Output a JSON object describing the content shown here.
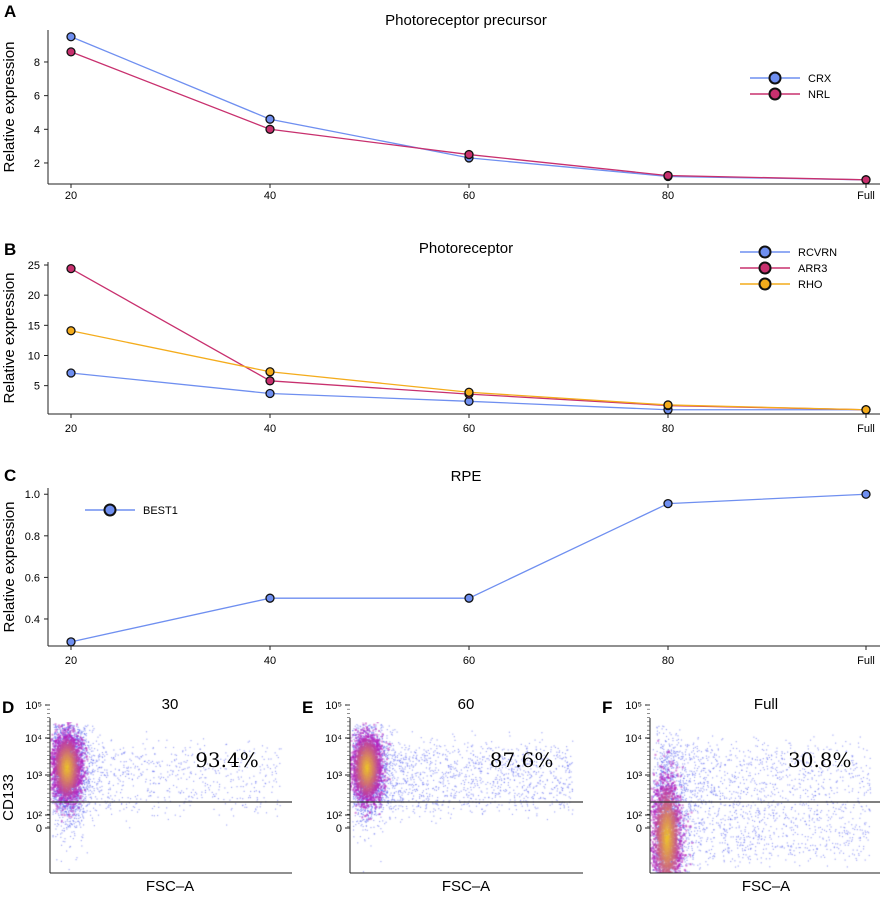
{
  "colors": {
    "blue": "#6f8ff0",
    "magenta": "#c8306e",
    "orange": "#f4ac1c"
  },
  "chart_data": [
    {
      "panel": "A",
      "type": "line",
      "title": "Photoreceptor precursor",
      "xlabel": "",
      "ylabel": "Relative expression",
      "categories": [
        "20",
        "40",
        "60",
        "80",
        "Full"
      ],
      "yticks": [
        2,
        4,
        6,
        8
      ],
      "ylim": [
        0.75,
        9.9
      ],
      "legend": "top-right",
      "series": [
        {
          "name": "CRX",
          "color": "blue",
          "values": [
            9.5,
            4.6,
            2.3,
            1.2,
            1.0
          ]
        },
        {
          "name": "NRL",
          "color": "magenta",
          "values": [
            8.6,
            4.0,
            2.5,
            1.25,
            1.0
          ]
        }
      ]
    },
    {
      "panel": "B",
      "type": "line",
      "title": "Photoreceptor",
      "xlabel": "",
      "ylabel": "Relative expression",
      "categories": [
        "20",
        "40",
        "60",
        "80",
        "Full"
      ],
      "yticks": [
        5,
        10,
        15,
        20,
        25
      ],
      "ylim": [
        0.3,
        25.5
      ],
      "legend": "top-right",
      "series": [
        {
          "name": "RCVRN",
          "color": "blue",
          "values": [
            7.1,
            3.7,
            2.4,
            1.0,
            1.0
          ]
        },
        {
          "name": "ARR3",
          "color": "magenta",
          "values": [
            24.4,
            5.8,
            3.6,
            1.7,
            1.0
          ]
        },
        {
          "name": "RHO",
          "color": "orange",
          "values": [
            14.1,
            7.3,
            3.9,
            1.8,
            1.0
          ]
        }
      ]
    },
    {
      "panel": "C",
      "type": "line",
      "title": "RPE",
      "xlabel": "",
      "ylabel": "Relative expression",
      "categories": [
        "20",
        "40",
        "60",
        "80",
        "Full"
      ],
      "yticks": [
        "0.4",
        "0.6",
        "0.8",
        "1.0"
      ],
      "ylim": [
        0.27,
        1.03
      ],
      "legend": "top-left",
      "series": [
        {
          "name": "BEST1",
          "color": "blue",
          "values": [
            0.29,
            0.5,
            0.5,
            0.955,
            1.0
          ]
        }
      ]
    },
    {
      "panel": "D",
      "type": "scatter",
      "title": "30",
      "xlabel": "FSC–A",
      "ylabel": "CD133",
      "yticks": [
        "0",
        "10²",
        "10³",
        "10⁴",
        "10⁵"
      ],
      "gate": "10³",
      "percent": "93.4%"
    },
    {
      "panel": "E",
      "type": "scatter",
      "title": "60",
      "xlabel": "FSC–A",
      "ylabel": "",
      "yticks": [
        "0",
        "10²",
        "10³",
        "10⁴",
        "10⁵"
      ],
      "gate": "10³",
      "percent": "87.6%"
    },
    {
      "panel": "F",
      "type": "scatter",
      "title": "Full",
      "xlabel": "FSC–A",
      "ylabel": "",
      "yticks": [
        "0",
        "10²",
        "10³",
        "10⁴",
        "10⁵"
      ],
      "gate": "10³",
      "percent": "30.8%"
    }
  ]
}
